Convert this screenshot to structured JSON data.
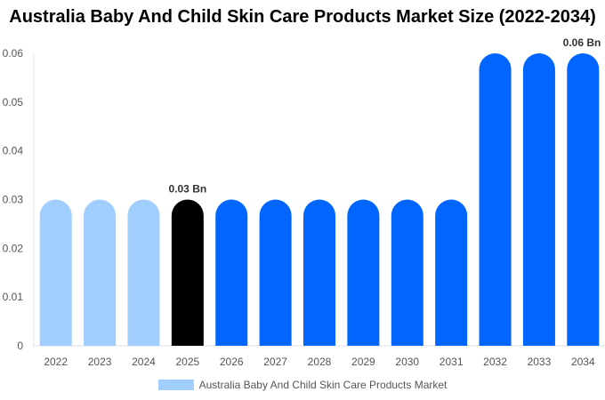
{
  "chart_data": {
    "type": "bar",
    "title": "Australia Baby And Child Skin Care Products Market Size (2022-2034)",
    "categories": [
      "2022",
      "2023",
      "2024",
      "2025",
      "2026",
      "2027",
      "2028",
      "2029",
      "2030",
      "2031",
      "2032",
      "2033",
      "2034"
    ],
    "series": [
      {
        "name": "Australia Baby And Child Skin Care Products Market",
        "values": [
          0.03,
          0.03,
          0.03,
          0.03,
          0.03,
          0.03,
          0.03,
          0.03,
          0.03,
          0.03,
          0.06,
          0.06,
          0.06
        ]
      }
    ],
    "bar_colors": [
      "#a0cfff",
      "#a0cfff",
      "#a0cfff",
      "#000000",
      "#0066ff",
      "#0066ff",
      "#0066ff",
      "#0066ff",
      "#0066ff",
      "#0066ff",
      "#0066ff",
      "#0066ff",
      "#0066ff"
    ],
    "data_labels": [
      {
        "index": 3,
        "text": "0.03 Bn"
      },
      {
        "index": 12,
        "text": "0.06 Bn"
      }
    ],
    "yticks": [
      "0",
      "0.01",
      "0.02",
      "0.03",
      "0.04",
      "0.05",
      "0.06"
    ],
    "ylim": [
      0,
      0.06
    ],
    "grid": false,
    "legend": "bottom",
    "legend_color": "#a0cfff"
  }
}
